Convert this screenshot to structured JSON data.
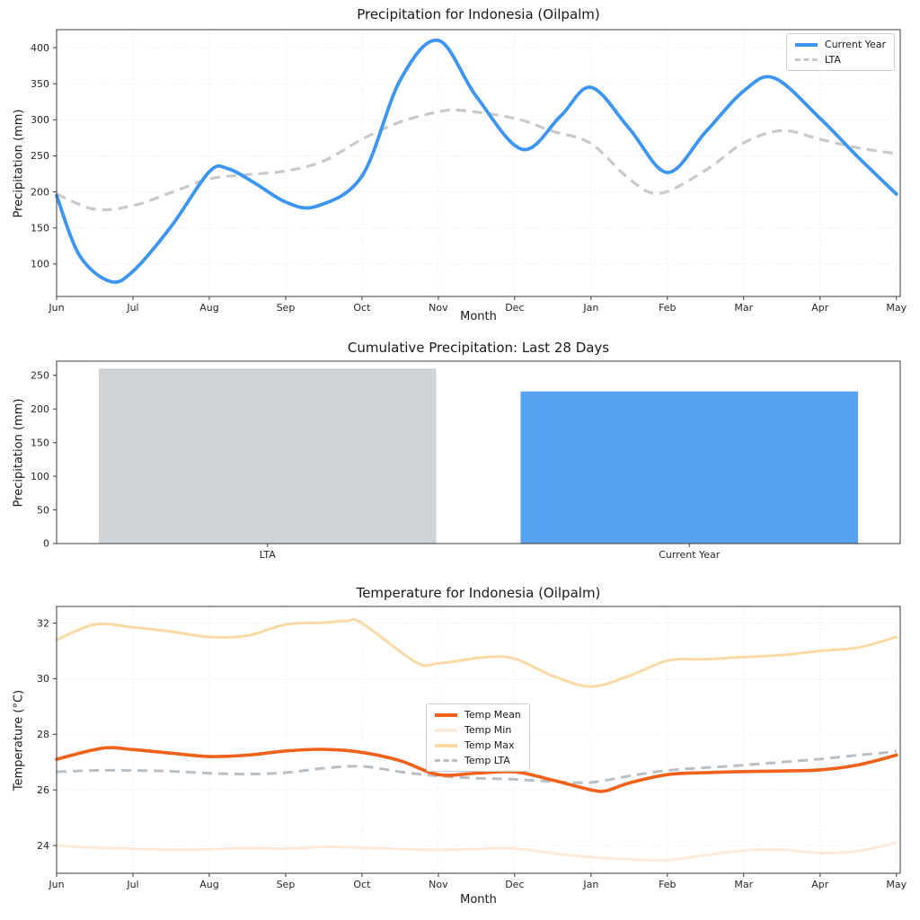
{
  "figure": {
    "background": "#ffffff"
  },
  "chart_data": [
    {
      "type": "line",
      "title": "Precipitation for Indonesia (Oilpalm)",
      "xlabel": "Month",
      "ylabel": "Precipitation (mm)",
      "x_tick_labels": [
        "Jun",
        "Jul",
        "Aug",
        "Sep",
        "Oct",
        "Nov",
        "Dec",
        "Jan",
        "Feb",
        "Mar",
        "Apr",
        "May"
      ],
      "y_ticks": [
        100,
        150,
        200,
        250,
        300,
        350,
        400
      ],
      "xlim": [
        0,
        11.05
      ],
      "ylim": [
        55,
        425
      ],
      "grid": true,
      "legend_position": "upper right",
      "draw_order": [
        1,
        0
      ],
      "series": [
        {
          "name": "Current Year",
          "color": "#3d95f3",
          "dash": false,
          "width": 3.8,
          "points": [
            [
              0,
              195
            ],
            [
              0.3,
              112
            ],
            [
              0.7,
              76
            ],
            [
              1,
              90
            ],
            [
              1.5,
              152
            ],
            [
              2,
              228
            ],
            [
              2.25,
              232
            ],
            [
              2.6,
              212
            ],
            [
              3,
              186
            ],
            [
              3.4,
              180
            ],
            [
              4,
              222
            ],
            [
              4.5,
              355
            ],
            [
              5,
              410
            ],
            [
              5.5,
              332
            ],
            [
              6.1,
              259
            ],
            [
              6.6,
              305
            ],
            [
              7,
              345
            ],
            [
              7.5,
              288
            ],
            [
              8,
              227
            ],
            [
              8.5,
              283
            ],
            [
              9,
              340
            ],
            [
              9.4,
              358
            ],
            [
              10,
              302
            ],
            [
              10.5,
              248
            ],
            [
              11,
              197
            ]
          ]
        },
        {
          "name": "LTA",
          "color": "#c9c9c9",
          "dash": true,
          "width": 3.2,
          "points": [
            [
              0,
              197
            ],
            [
              0.5,
              176
            ],
            [
              1,
              181
            ],
            [
              1.5,
              199
            ],
            [
              2,
              218
            ],
            [
              2.5,
              224
            ],
            [
              3,
              229
            ],
            [
              3.5,
              243
            ],
            [
              4,
              273
            ],
            [
              4.5,
              297
            ],
            [
              5,
              311
            ],
            [
              5.3,
              313
            ],
            [
              6,
              302
            ],
            [
              6.5,
              284
            ],
            [
              7,
              267
            ],
            [
              7.5,
              218
            ],
            [
              7.9,
              198
            ],
            [
              8.5,
              230
            ],
            [
              9,
              268
            ],
            [
              9.5,
              285
            ],
            [
              10,
              273
            ],
            [
              10.5,
              261
            ],
            [
              11,
              253
            ]
          ]
        }
      ]
    },
    {
      "type": "bar",
      "title": "Cumulative Precipitation: Last 28 Days",
      "ylabel": "Precipitation (mm)",
      "categories": [
        "LTA",
        "Current Year"
      ],
      "values": [
        260,
        226
      ],
      "colors": [
        "#cfd4d9",
        "#57a2f1"
      ],
      "y_ticks": [
        0,
        50,
        100,
        150,
        200,
        250
      ],
      "ylim": [
        0,
        271
      ],
      "grid": false
    },
    {
      "type": "line",
      "title": "Temperature for Indonesia (Oilpalm)",
      "xlabel": "Month",
      "ylabel": "Temperature (°C)",
      "x_tick_labels": [
        "Jun",
        "Jul",
        "Aug",
        "Sep",
        "Oct",
        "Nov",
        "Dec",
        "Jan",
        "Feb",
        "Mar",
        "Apr",
        "May"
      ],
      "y_ticks": [
        24,
        26,
        28,
        30,
        32
      ],
      "xlim": [
        0,
        11.05
      ],
      "ylim": [
        23,
        32.6
      ],
      "grid": true,
      "legend_position": "center",
      "draw_order": [
        1,
        2,
        3,
        0
      ],
      "series": [
        {
          "name": "Temp Mean",
          "color": "#f1611a",
          "dash": false,
          "width": 3.6,
          "points": [
            [
              0,
              27.1
            ],
            [
              0.6,
              27.5
            ],
            [
              1,
              27.45
            ],
            [
              1.5,
              27.32
            ],
            [
              2,
              27.2
            ],
            [
              2.5,
              27.25
            ],
            [
              3,
              27.4
            ],
            [
              3.5,
              27.46
            ],
            [
              4,
              27.35
            ],
            [
              4.5,
              27.05
            ],
            [
              5,
              26.55
            ],
            [
              5.5,
              26.6
            ],
            [
              6,
              26.65
            ],
            [
              6.5,
              26.35
            ],
            [
              7,
              26.0
            ],
            [
              7.2,
              25.97
            ],
            [
              7.5,
              26.25
            ],
            [
              8,
              26.55
            ],
            [
              8.5,
              26.62
            ],
            [
              9,
              26.66
            ],
            [
              9.5,
              26.68
            ],
            [
              10,
              26.72
            ],
            [
              10.5,
              26.9
            ],
            [
              11,
              27.25
            ]
          ]
        },
        {
          "name": "Temp Min",
          "color": "#fdeada",
          "dash": false,
          "width": 3,
          "points": [
            [
              0,
              24.0
            ],
            [
              0.5,
              23.92
            ],
            [
              1,
              23.88
            ],
            [
              1.5,
              23.85
            ],
            [
              2,
              23.86
            ],
            [
              2.5,
              23.9
            ],
            [
              3,
              23.88
            ],
            [
              3.5,
              23.95
            ],
            [
              4,
              23.92
            ],
            [
              4.5,
              23.87
            ],
            [
              5,
              23.84
            ],
            [
              5.5,
              23.87
            ],
            [
              6,
              23.89
            ],
            [
              6.5,
              23.72
            ],
            [
              7,
              23.58
            ],
            [
              7.5,
              23.5
            ],
            [
              8,
              23.47
            ],
            [
              8.5,
              23.65
            ],
            [
              9,
              23.82
            ],
            [
              9.5,
              23.85
            ],
            [
              10,
              23.73
            ],
            [
              10.5,
              23.8
            ],
            [
              11,
              24.1
            ]
          ]
        },
        {
          "name": "Temp Max",
          "color": "#fbd9a5",
          "dash": false,
          "width": 3,
          "points": [
            [
              0,
              31.4
            ],
            [
              0.5,
              31.95
            ],
            [
              1,
              31.85
            ],
            [
              1.5,
              31.7
            ],
            [
              2,
              31.5
            ],
            [
              2.5,
              31.55
            ],
            [
              3,
              31.95
            ],
            [
              3.5,
              32.02
            ],
            [
              3.8,
              32.08
            ],
            [
              4,
              32.0
            ],
            [
              4.7,
              30.6
            ],
            [
              5,
              30.55
            ],
            [
              5.6,
              30.77
            ],
            [
              6,
              30.72
            ],
            [
              6.5,
              30.1
            ],
            [
              7,
              29.72
            ],
            [
              7.5,
              30.1
            ],
            [
              8,
              30.65
            ],
            [
              8.5,
              30.7
            ],
            [
              9,
              30.78
            ],
            [
              9.5,
              30.85
            ],
            [
              10,
              31.0
            ],
            [
              10.5,
              31.12
            ],
            [
              11,
              31.5
            ]
          ]
        },
        {
          "name": "Temp LTA",
          "color": "#b9c0c5",
          "dash": true,
          "width": 3,
          "points": [
            [
              0,
              26.65
            ],
            [
              0.5,
              26.7
            ],
            [
              1,
              26.7
            ],
            [
              1.5,
              26.67
            ],
            [
              2,
              26.6
            ],
            [
              2.5,
              26.57
            ],
            [
              3,
              26.62
            ],
            [
              3.5,
              26.78
            ],
            [
              4,
              26.85
            ],
            [
              4.5,
              26.65
            ],
            [
              5,
              26.5
            ],
            [
              5.5,
              26.42
            ],
            [
              6,
              26.38
            ],
            [
              6.5,
              26.3
            ],
            [
              7,
              26.27
            ],
            [
              7.5,
              26.5
            ],
            [
              8,
              26.7
            ],
            [
              8.5,
              26.8
            ],
            [
              9,
              26.89
            ],
            [
              9.5,
              27.0
            ],
            [
              10,
              27.11
            ],
            [
              10.5,
              27.25
            ],
            [
              11,
              27.38
            ]
          ]
        }
      ]
    }
  ]
}
